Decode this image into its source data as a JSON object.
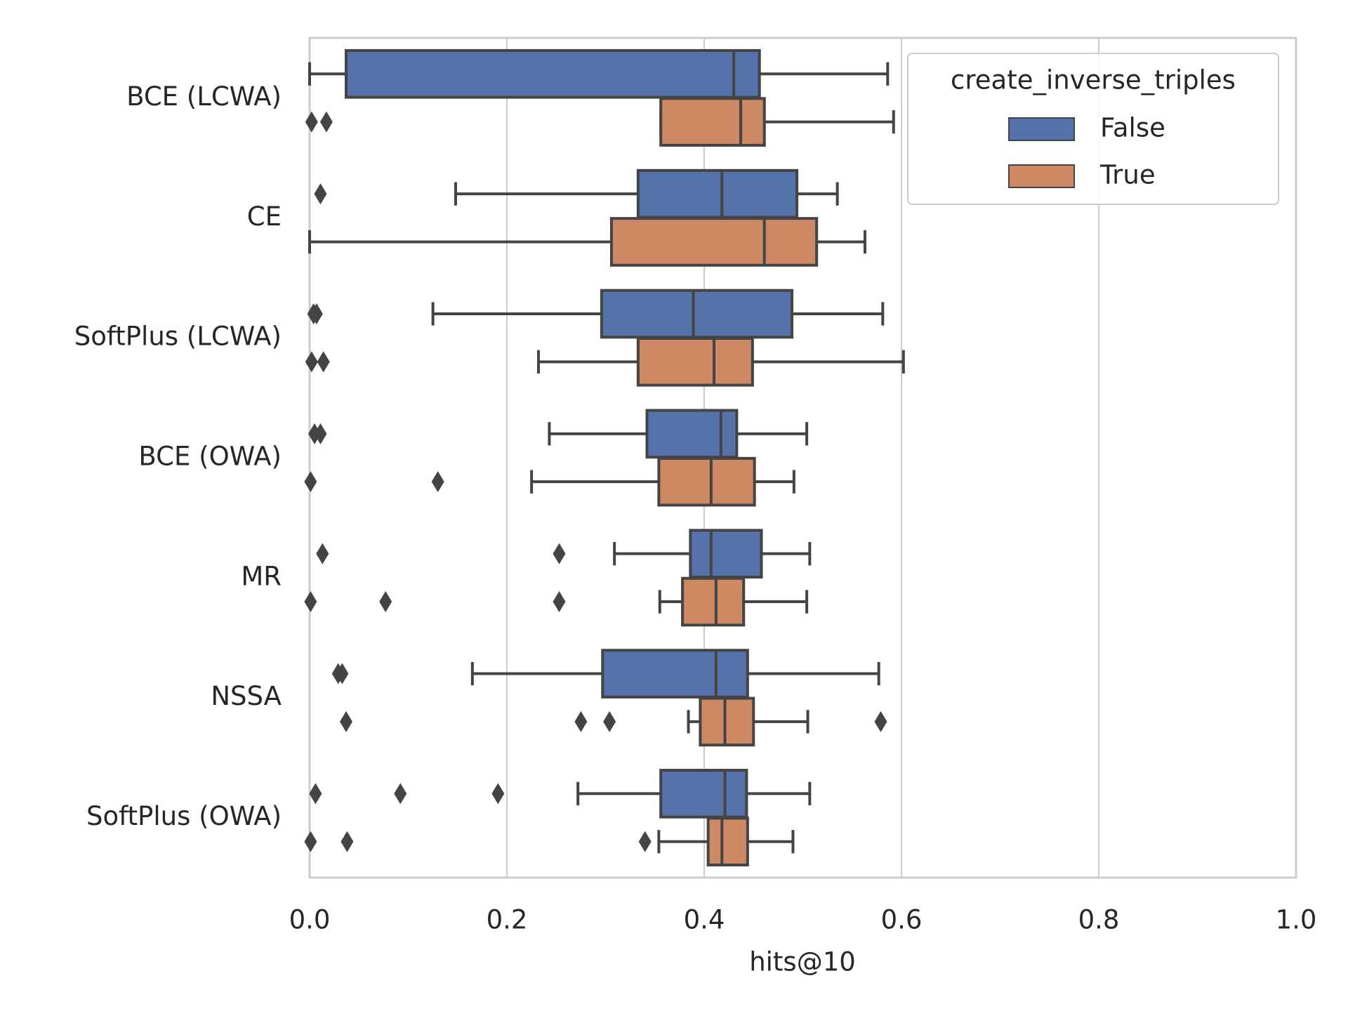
{
  "chart_data": {
    "type": "box",
    "categories": [
      "BCE (LCWA)",
      "CE",
      "SoftPlus (LCWA)",
      "BCE (OWA)",
      "MR",
      "NSSA",
      "SoftPlus (OWA)"
    ],
    "xlabel": "hits@10",
    "xlim": [
      0,
      1
    ],
    "xticks": [
      {
        "value": 0,
        "label": "0.0"
      },
      0.2,
      0.4,
      0.6,
      0.8,
      {
        "value": 1,
        "label": "1.0"
      }
    ],
    "grid": true,
    "legend_title": "create_inverse_triples",
    "legend_position": "upper right",
    "series": [
      {
        "name": "False",
        "color": "#5572aa",
        "boxes": [
          {
            "whislo": 0.0,
            "q1": 0.037,
            "med": 0.43,
            "q3": 0.456,
            "whishi": 0.586,
            "fliers": []
          },
          {
            "whislo": 0.148,
            "q1": 0.333,
            "med": 0.418,
            "q3": 0.494,
            "whishi": 0.535,
            "fliers": [
              0.011
            ]
          },
          {
            "whislo": 0.125,
            "q1": 0.296,
            "med": 0.389,
            "q3": 0.489,
            "whishi": 0.581,
            "fliers": [
              0.004,
              0.007
            ]
          },
          {
            "whislo": 0.243,
            "q1": 0.342,
            "med": 0.417,
            "q3": 0.433,
            "whishi": 0.504,
            "fliers": [
              0.005,
              0.011
            ]
          },
          {
            "whislo": 0.309,
            "q1": 0.386,
            "med": 0.407,
            "q3": 0.458,
            "whishi": 0.507,
            "fliers": [
              0.013,
              0.253
            ]
          },
          {
            "whislo": 0.165,
            "q1": 0.297,
            "med": 0.412,
            "q3": 0.444,
            "whishi": 0.577,
            "fliers": [
              0.029,
              0.033
            ]
          },
          {
            "whislo": 0.272,
            "q1": 0.356,
            "med": 0.421,
            "q3": 0.443,
            "whishi": 0.507,
            "fliers": [
              0.006,
              0.092,
              0.191
            ]
          }
        ]
      },
      {
        "name": "True",
        "color": "#cc8963",
        "boxes": [
          {
            "whislo": 0.356,
            "q1": 0.356,
            "med": 0.437,
            "q3": 0.461,
            "whishi": 0.592,
            "fliers": [
              0.002,
              0.017
            ]
          },
          {
            "whislo": 0.0,
            "q1": 0.306,
            "med": 0.461,
            "q3": 0.514,
            "whishi": 0.563,
            "fliers": []
          },
          {
            "whislo": 0.232,
            "q1": 0.333,
            "med": 0.41,
            "q3": 0.449,
            "whishi": 0.602,
            "fliers": [
              0.002,
              0.014
            ]
          },
          {
            "whislo": 0.225,
            "q1": 0.354,
            "med": 0.407,
            "q3": 0.451,
            "whishi": 0.491,
            "fliers": [
              0.001,
              0.13
            ]
          },
          {
            "whislo": 0.355,
            "q1": 0.378,
            "med": 0.412,
            "q3": 0.44,
            "whishi": 0.504,
            "fliers": [
              0.001,
              0.077,
              0.253
            ]
          },
          {
            "whislo": 0.384,
            "q1": 0.396,
            "med": 0.421,
            "q3": 0.45,
            "whishi": 0.505,
            "fliers": [
              0.037,
              0.275,
              0.304,
              0.579
            ]
          },
          {
            "whislo": 0.354,
            "q1": 0.404,
            "med": 0.418,
            "q3": 0.444,
            "whishi": 0.49,
            "fliers": [
              0.001,
              0.038,
              0.34
            ]
          }
        ]
      }
    ]
  }
}
